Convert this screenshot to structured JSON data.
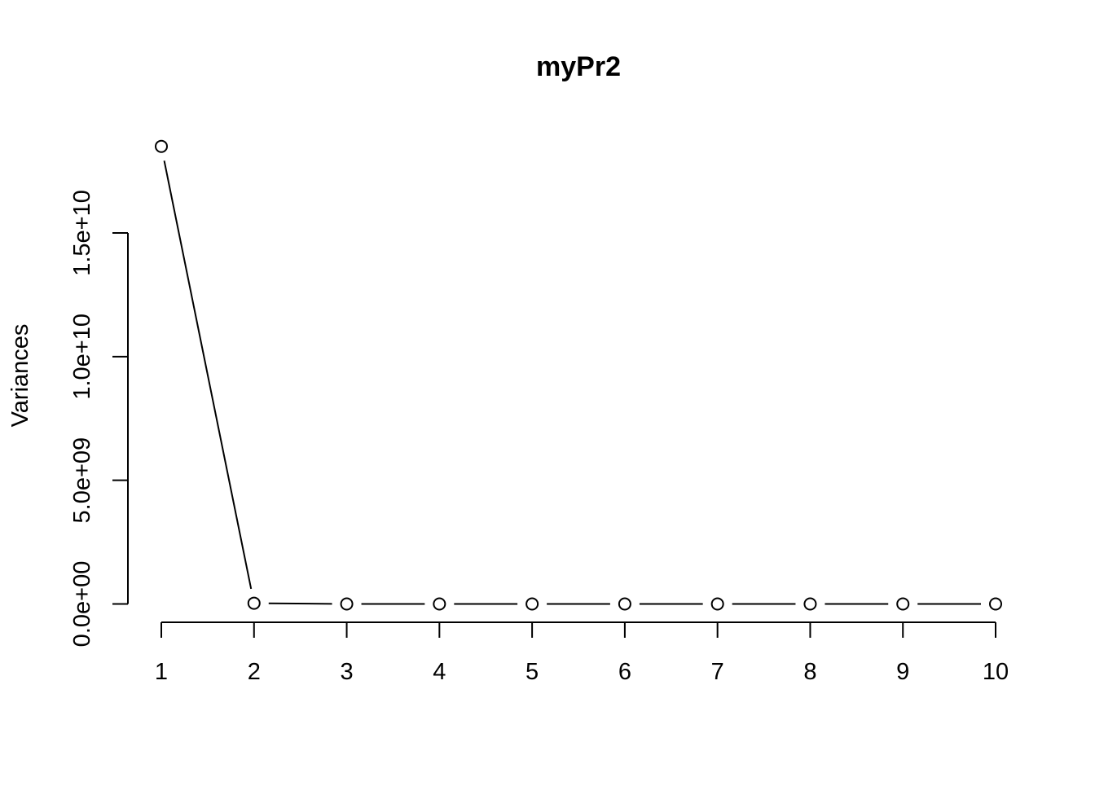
{
  "chart_data": {
    "type": "line",
    "title": "myPr2",
    "xlabel": "",
    "ylabel": "Variances",
    "x": [
      1,
      2,
      3,
      4,
      5,
      6,
      7,
      8,
      9,
      10
    ],
    "x_tick_labels": [
      "1",
      "2",
      "3",
      "4",
      "5",
      "6",
      "7",
      "8",
      "9",
      "10"
    ],
    "y_tick_values": [
      0,
      5000000000,
      10000000000,
      15000000000
    ],
    "y_tick_labels": [
      "0.0e+00",
      "5.0e+09",
      "1.0e+10",
      "1.5e+10"
    ],
    "series": [
      {
        "values": [
          18500000000,
          30000000,
          0,
          0,
          0,
          0,
          0,
          0,
          0,
          0
        ]
      }
    ],
    "marker": "open-circle",
    "line_color": "#000000",
    "grid": false,
    "legend": "none"
  }
}
